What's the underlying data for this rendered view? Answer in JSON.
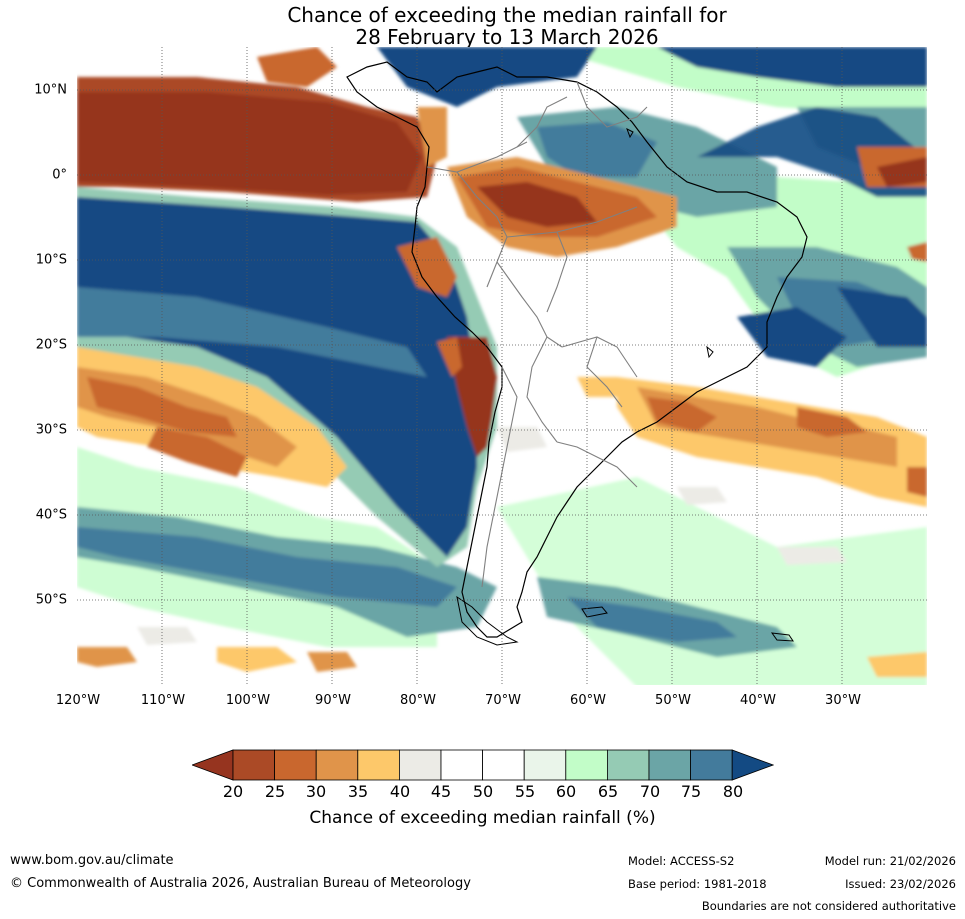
{
  "title": {
    "line1": "Chance of exceeding the median rainfall for",
    "line2": "28 February to 13 March 2026"
  },
  "map": {
    "lat_labels": [
      "10°N",
      "0°",
      "10°S",
      "20°S",
      "30°S",
      "40°S",
      "50°S"
    ],
    "lon_labels": [
      "120°W",
      "110°W",
      "100°W",
      "90°W",
      "80°W",
      "70°W",
      "60°W",
      "50°W",
      "40°W",
      "30°W"
    ]
  },
  "colorbar": {
    "ticks": [
      "20",
      "25",
      "30",
      "35",
      "40",
      "45",
      "50",
      "55",
      "60",
      "65",
      "70",
      "75",
      "80"
    ],
    "colors": [
      "#96341f",
      "#ab4a26",
      "#c9672e",
      "#e0944a",
      "#fdc86a",
      "#ecebe6",
      "#ffffff",
      "#ffffff",
      "#eaf5ea",
      "#c2fdc8",
      "#95cbb4",
      "#6ba5a6",
      "#437b9c",
      "#134a83"
    ],
    "label": "Chance of exceeding median rainfall (%)"
  },
  "footer": {
    "website": "www.bom.gov.au/climate",
    "copyright": "© Commonwealth of Australia 2026, Australian Bureau of Meteorology",
    "model": "Model: ACCESS-S2",
    "base_period": "Base period: 1981-2018",
    "model_run": "Model run: 21/02/2026",
    "issued": "Issued: 23/02/2026",
    "disclaimer": "Boundaries are not considered authoritative"
  }
}
